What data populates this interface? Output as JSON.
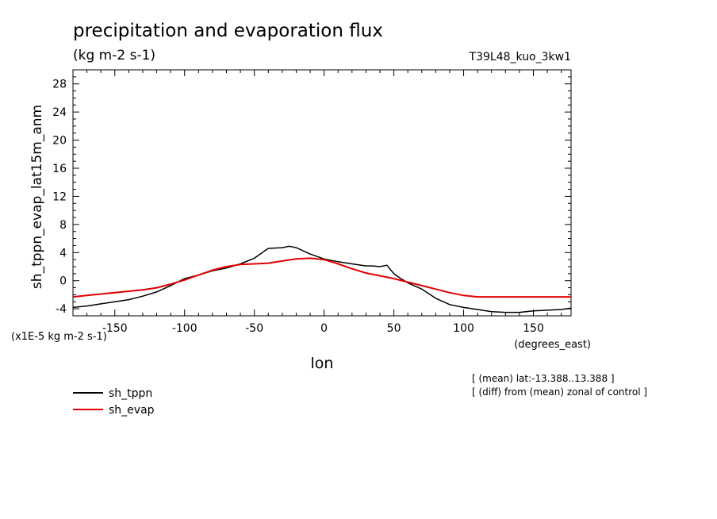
{
  "chart_data": {
    "type": "line",
    "title": "precipitation and evaporation flux",
    "subtitle": "(kg m-2 s-1)",
    "run_label": "T39L48_kuo_3kw1",
    "xlabel": "lon",
    "x_units": "(degrees_east)",
    "ylabel": "sh_tppn_evap_lat15m_anm",
    "y_scale_note": "(x1E-5 kg m-2 s-1)",
    "xlim": [
      -180,
      177
    ],
    "ylim": [
      -5,
      30
    ],
    "x_ticks": [
      -150,
      -100,
      -50,
      0,
      50,
      100,
      150
    ],
    "x_tick_labels": [
      "-150",
      "-100",
      "-50",
      "0",
      "50",
      "100",
      "150"
    ],
    "y_ticks": [
      -4,
      0,
      4,
      8,
      12,
      16,
      20,
      24,
      28
    ],
    "y_tick_labels": [
      "-4",
      "0",
      "4",
      "8",
      "12",
      "16",
      "20",
      "24",
      "28"
    ],
    "notes": [
      "[ (mean) lat:-13.388..13.388 ]",
      "[ (diff) from (mean) zonal of control ]"
    ],
    "legend_position": "bottom-left",
    "series": [
      {
        "name": "sh_tppn",
        "color": "#000000",
        "x": [
          -180,
          -170,
          -160,
          -150,
          -140,
          -130,
          -120,
          -110,
          -100,
          -90,
          -80,
          -70,
          -60,
          -50,
          -40,
          -30,
          -25,
          -20,
          -10,
          0,
          10,
          20,
          30,
          35,
          40,
          45,
          50,
          55,
          60,
          70,
          80,
          90,
          100,
          110,
          120,
          130,
          140,
          150,
          160,
          170,
          177
        ],
        "y": [
          -3.8,
          -3.6,
          -3.3,
          -3.0,
          -2.7,
          -2.2,
          -1.6,
          -0.7,
          0.3,
          0.8,
          1.4,
          1.8,
          2.4,
          3.2,
          4.6,
          4.7,
          4.9,
          4.7,
          3.8,
          3.1,
          2.7,
          2.4,
          2.1,
          2.1,
          2.0,
          2.2,
          1.0,
          0.3,
          -0.3,
          -1.2,
          -2.5,
          -3.4,
          -3.8,
          -4.1,
          -4.4,
          -4.5,
          -4.5,
          -4.3,
          -4.2,
          -4.1,
          -3.9
        ]
      },
      {
        "name": "sh_evap",
        "color": "#e00000",
        "x": [
          -180,
          -170,
          -160,
          -150,
          -140,
          -130,
          -120,
          -110,
          -100,
          -90,
          -80,
          -70,
          -60,
          -50,
          -40,
          -30,
          -20,
          -10,
          0,
          10,
          20,
          30,
          40,
          50,
          60,
          70,
          80,
          90,
          100,
          110,
          120,
          130,
          140,
          150,
          160,
          170,
          177
        ],
        "y": [
          -2.3,
          -2.1,
          -1.9,
          -1.7,
          -1.5,
          -1.3,
          -1.0,
          -0.5,
          0.1,
          0.8,
          1.5,
          2.0,
          2.3,
          2.4,
          2.5,
          2.8,
          3.1,
          3.2,
          3.0,
          2.4,
          1.7,
          1.1,
          0.7,
          0.3,
          -0.2,
          -0.7,
          -1.2,
          -1.7,
          -2.1,
          -2.3,
          -2.3,
          -2.3,
          -2.3,
          -2.3,
          -2.3,
          -2.3,
          -2.3
        ]
      }
    ]
  }
}
